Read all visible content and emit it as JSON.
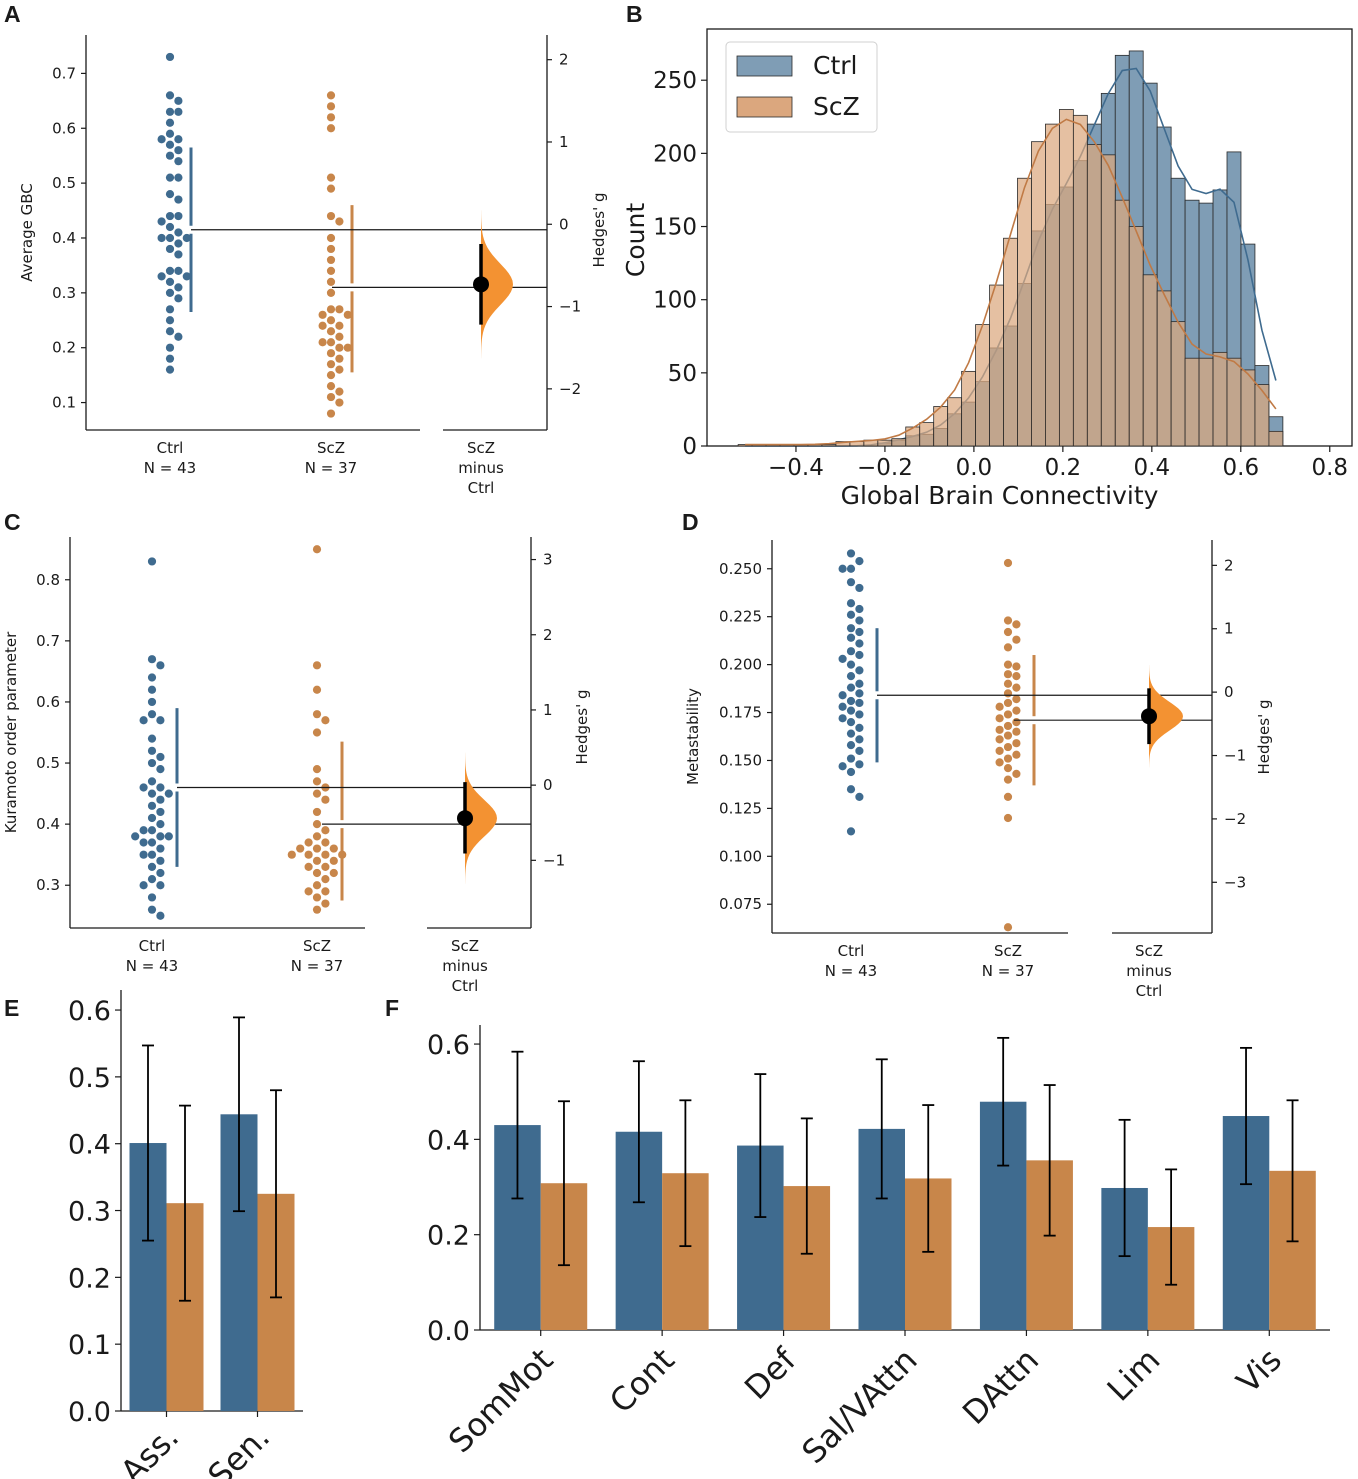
{
  "colors": {
    "ctrl": "#3f6b8f",
    "scz": "#c8864a",
    "ctrl_hist": "#7f9db5",
    "scz_hist": "#dba77e",
    "effect": "#f39232",
    "axis": "#1a1a1a"
  },
  "panels": {
    "A": {
      "letter": "A"
    },
    "B": {
      "letter": "B"
    },
    "C": {
      "letter": "C"
    },
    "D": {
      "letter": "D"
    },
    "E": {
      "letter": "E"
    },
    "F": {
      "letter": "F"
    }
  },
  "chart_data": [
    {
      "panel": "A",
      "type": "scatter",
      "title": "",
      "ylabel": "Average GBC",
      "ylabel_right": "Hedges' g",
      "ylim": [
        0.05,
        0.77
      ],
      "yticks": [
        "0.1",
        "0.2",
        "0.3",
        "0.4",
        "0.5",
        "0.6",
        "0.7"
      ],
      "right_ylim": [
        -2.5,
        2.3
      ],
      "right_yticks": [
        "−2",
        "−1",
        "0",
        "1",
        "2"
      ],
      "groups": [
        {
          "name": "Ctrl",
          "label": [
            "Ctrl",
            "N = 43"
          ],
          "values": [
            0.73,
            0.66,
            0.65,
            0.63,
            0.63,
            0.61,
            0.59,
            0.58,
            0.58,
            0.57,
            0.56,
            0.55,
            0.54,
            0.51,
            0.51,
            0.48,
            0.47,
            0.44,
            0.44,
            0.43,
            0.42,
            0.41,
            0.4,
            0.4,
            0.4,
            0.39,
            0.38,
            0.37,
            0.34,
            0.34,
            0.33,
            0.33,
            0.32,
            0.31,
            0.3,
            0.29,
            0.27,
            0.25,
            0.23,
            0.22,
            0.2,
            0.18,
            0.16
          ],
          "mean": 0.415,
          "sd_lower": 0.265,
          "sd_upper": 0.565
        },
        {
          "name": "ScZ",
          "label": [
            "ScZ",
            "N = 37"
          ],
          "values": [
            0.66,
            0.64,
            0.62,
            0.6,
            0.51,
            0.49,
            0.44,
            0.43,
            0.4,
            0.38,
            0.36,
            0.34,
            0.32,
            0.3,
            0.27,
            0.27,
            0.26,
            0.26,
            0.25,
            0.24,
            0.24,
            0.23,
            0.22,
            0.21,
            0.21,
            0.2,
            0.2,
            0.19,
            0.18,
            0.17,
            0.16,
            0.15,
            0.13,
            0.12,
            0.11,
            0.1,
            0.08
          ],
          "mean": 0.31,
          "sd_lower": 0.155,
          "sd_upper": 0.46
        }
      ],
      "effect": {
        "label": [
          "ScZ",
          "minus",
          "Ctrl"
        ],
        "g": -0.73,
        "ci": [
          -1.22,
          -0.24
        ]
      }
    },
    {
      "panel": "B",
      "type": "histogram",
      "xlabel": "Global Brain Connectivity",
      "ylabel": "Count",
      "xlim": [
        -0.6,
        0.85
      ],
      "ylim": [
        0,
        285
      ],
      "xticks": [
        "−0.4",
        "−0.2",
        "0.0",
        "0.2",
        "0.4",
        "0.6",
        "0.8"
      ],
      "yticks": [
        "0",
        "50",
        "100",
        "150",
        "200",
        "250"
      ],
      "legend": {
        "placement": "top-left",
        "entries": [
          "Ctrl",
          "ScZ"
        ]
      },
      "bin_start": -0.53,
      "bin_width": 0.0314,
      "series": [
        {
          "name": "Ctrl",
          "counts": [
            0,
            0,
            0,
            0,
            0,
            0,
            0,
            0,
            0,
            0,
            2,
            4,
            7,
            8,
            12,
            22,
            30,
            44,
            67,
            82,
            111,
            147,
            165,
            177,
            195,
            220,
            241,
            267,
            270,
            248,
            218,
            183,
            168,
            166,
            175,
            201,
            138,
            55,
            20
          ]
        },
        {
          "name": "ScZ",
          "counts": [
            1,
            1,
            1,
            1,
            1,
            1,
            1,
            3,
            3,
            4,
            4,
            5,
            13,
            16,
            27,
            33,
            51,
            83,
            110,
            142,
            183,
            208,
            220,
            230,
            226,
            206,
            199,
            168,
            150,
            117,
            106,
            85,
            60,
            60,
            64,
            60,
            52,
            42,
            10
          ]
        }
      ]
    },
    {
      "panel": "C",
      "type": "scatter",
      "ylabel": "Kuramoto order parameter",
      "ylabel_right": "Hedges' g",
      "ylim": [
        0.23,
        0.87
      ],
      "yticks": [
        "0.3",
        "0.4",
        "0.5",
        "0.6",
        "0.7",
        "0.8"
      ],
      "right_ylim": [
        -1.9,
        3.3
      ],
      "right_yticks": [
        "−1",
        "0",
        "1",
        "2",
        "3"
      ],
      "groups": [
        {
          "name": "Ctrl",
          "label": [
            "Ctrl",
            "N = 43"
          ],
          "values": [
            0.83,
            0.67,
            0.66,
            0.64,
            0.62,
            0.6,
            0.58,
            0.57,
            0.57,
            0.54,
            0.52,
            0.51,
            0.5,
            0.49,
            0.47,
            0.46,
            0.46,
            0.45,
            0.45,
            0.44,
            0.43,
            0.42,
            0.41,
            0.4,
            0.39,
            0.39,
            0.38,
            0.38,
            0.38,
            0.37,
            0.37,
            0.36,
            0.35,
            0.35,
            0.34,
            0.33,
            0.32,
            0.31,
            0.3,
            0.3,
            0.28,
            0.26,
            0.25
          ],
          "mean": 0.46,
          "sd_lower": 0.33,
          "sd_upper": 0.59
        },
        {
          "name": "ScZ",
          "label": [
            "ScZ",
            "N = 37"
          ],
          "values": [
            0.85,
            0.66,
            0.62,
            0.58,
            0.57,
            0.55,
            0.49,
            0.47,
            0.46,
            0.45,
            0.44,
            0.42,
            0.4,
            0.39,
            0.38,
            0.37,
            0.37,
            0.36,
            0.36,
            0.36,
            0.35,
            0.35,
            0.35,
            0.35,
            0.34,
            0.34,
            0.33,
            0.33,
            0.32,
            0.32,
            0.31,
            0.3,
            0.29,
            0.29,
            0.28,
            0.27,
            0.26
          ],
          "mean": 0.4,
          "sd_lower": 0.275,
          "sd_upper": 0.535
        },
        {
          "name": "_",
          "values": []
        }
      ],
      "effect": {
        "label": [
          "ScZ",
          "minus",
          "Ctrl"
        ],
        "g": -0.44,
        "ci": [
          -0.91,
          0.04
        ]
      }
    },
    {
      "panel": "D",
      "type": "scatter",
      "ylabel": "Metastability",
      "ylabel_right": "Hedges' g",
      "ylim": [
        0.06,
        0.265
      ],
      "yticks": [
        "0.075",
        "0.100",
        "0.125",
        "0.150",
        "0.175",
        "0.200",
        "0.225",
        "0.250"
      ],
      "right_ylim": [
        -3.8,
        2.4
      ],
      "right_yticks": [
        "−3",
        "−2",
        "−1",
        "0",
        "1",
        "2"
      ],
      "groups": [
        {
          "name": "Ctrl",
          "label": [
            "Ctrl",
            "N = 43"
          ],
          "values": [
            0.258,
            0.254,
            0.25,
            0.25,
            0.243,
            0.24,
            0.232,
            0.229,
            0.226,
            0.223,
            0.219,
            0.217,
            0.214,
            0.211,
            0.207,
            0.205,
            0.203,
            0.2,
            0.197,
            0.194,
            0.19,
            0.188,
            0.185,
            0.184,
            0.181,
            0.18,
            0.178,
            0.176,
            0.174,
            0.172,
            0.17,
            0.167,
            0.164,
            0.161,
            0.158,
            0.155,
            0.151,
            0.148,
            0.147,
            0.144,
            0.135,
            0.131,
            0.113
          ],
          "mean": 0.184,
          "sd_lower": 0.149,
          "sd_upper": 0.219
        },
        {
          "name": "ScZ",
          "label": [
            "ScZ",
            "N = 37"
          ],
          "values": [
            0.253,
            0.223,
            0.221,
            0.217,
            0.213,
            0.209,
            0.2,
            0.199,
            0.195,
            0.194,
            0.19,
            0.188,
            0.185,
            0.182,
            0.18,
            0.178,
            0.176,
            0.174,
            0.172,
            0.17,
            0.168,
            0.166,
            0.165,
            0.163,
            0.161,
            0.159,
            0.157,
            0.155,
            0.153,
            0.151,
            0.149,
            0.146,
            0.143,
            0.14,
            0.131,
            0.12,
            0.063
          ],
          "mean": 0.171,
          "sd_lower": 0.137,
          "sd_upper": 0.205
        },
        {
          "name": "_",
          "values": []
        }
      ],
      "effect": {
        "label": [
          "ScZ",
          "minus",
          "Ctrl"
        ],
        "g": -0.38,
        "ci": [
          -0.82,
          0.06
        ]
      }
    },
    {
      "panel": "E",
      "type": "bar",
      "categories": [
        "Ass.",
        "Sen."
      ],
      "ylim": [
        0,
        0.63
      ],
      "yticks": [
        "0.0",
        "0.1",
        "0.2",
        "0.3",
        "0.4",
        "0.5",
        "0.6"
      ],
      "series": [
        {
          "name": "Ctrl",
          "values": [
            0.401,
            0.444
          ],
          "err": [
            0.146,
            0.145
          ]
        },
        {
          "name": "ScZ",
          "values": [
            0.311,
            0.325
          ],
          "err": [
            0.146,
            0.155
          ]
        }
      ]
    },
    {
      "panel": "F",
      "type": "bar",
      "categories": [
        "SomMot",
        "Cont",
        "Def",
        "Sal/VAttn",
        "DAttn",
        "Lim",
        "Vis"
      ],
      "ylim": [
        0,
        0.64
      ],
      "yticks": [
        "0.0",
        "0.2",
        "0.4",
        "0.6"
      ],
      "series": [
        {
          "name": "Ctrl",
          "values": [
            0.43,
            0.416,
            0.387,
            0.422,
            0.479,
            0.298,
            0.449
          ],
          "err": [
            0.154,
            0.148,
            0.15,
            0.146,
            0.134,
            0.143,
            0.143
          ]
        },
        {
          "name": "ScZ",
          "values": [
            0.308,
            0.329,
            0.302,
            0.318,
            0.356,
            0.216,
            0.334
          ],
          "err": [
            0.172,
            0.153,
            0.142,
            0.154,
            0.158,
            0.121,
            0.148
          ]
        }
      ]
    }
  ]
}
